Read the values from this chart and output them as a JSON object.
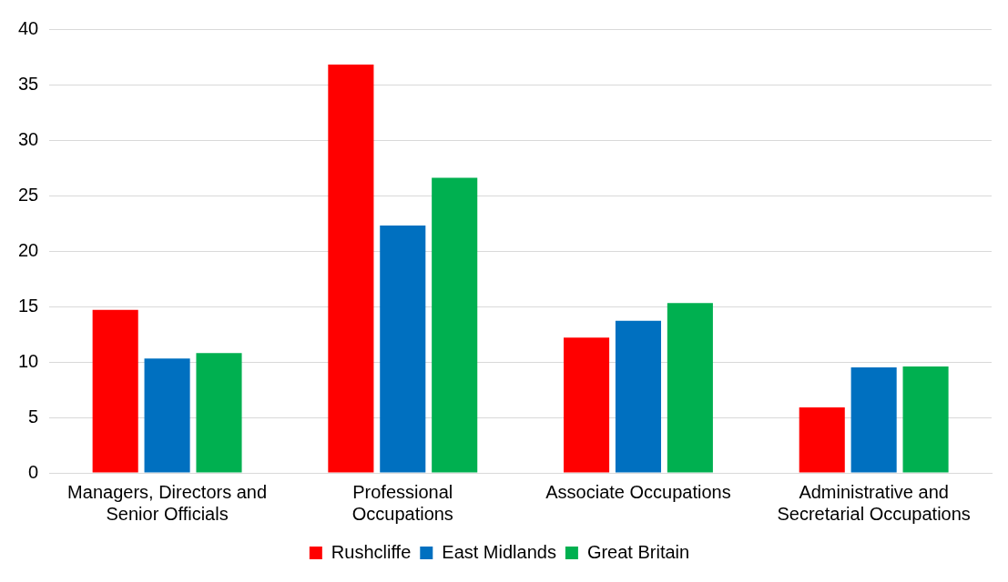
{
  "chart_data": {
    "type": "bar",
    "categories": [
      "Managers, Directors and Senior Officials",
      "Professional Occupations",
      "Associate Occupations",
      "Administrative and Secretarial Occupations"
    ],
    "series": [
      {
        "name": "Rushcliffe",
        "color": "#ff0000",
        "values": [
          14.7,
          36.8,
          12.2,
          5.9
        ]
      },
      {
        "name": "East Midlands",
        "color": "#0070c0",
        "values": [
          10.3,
          22.3,
          13.7,
          9.5
        ]
      },
      {
        "name": "Great Britain",
        "color": "#00b050",
        "values": [
          10.8,
          26.6,
          15.3,
          9.6
        ]
      }
    ],
    "ylim": [
      0,
      40
    ],
    "yticks": [
      0,
      5,
      10,
      15,
      20,
      25,
      30,
      35,
      40
    ],
    "grid": "y",
    "legend": "bottom"
  }
}
